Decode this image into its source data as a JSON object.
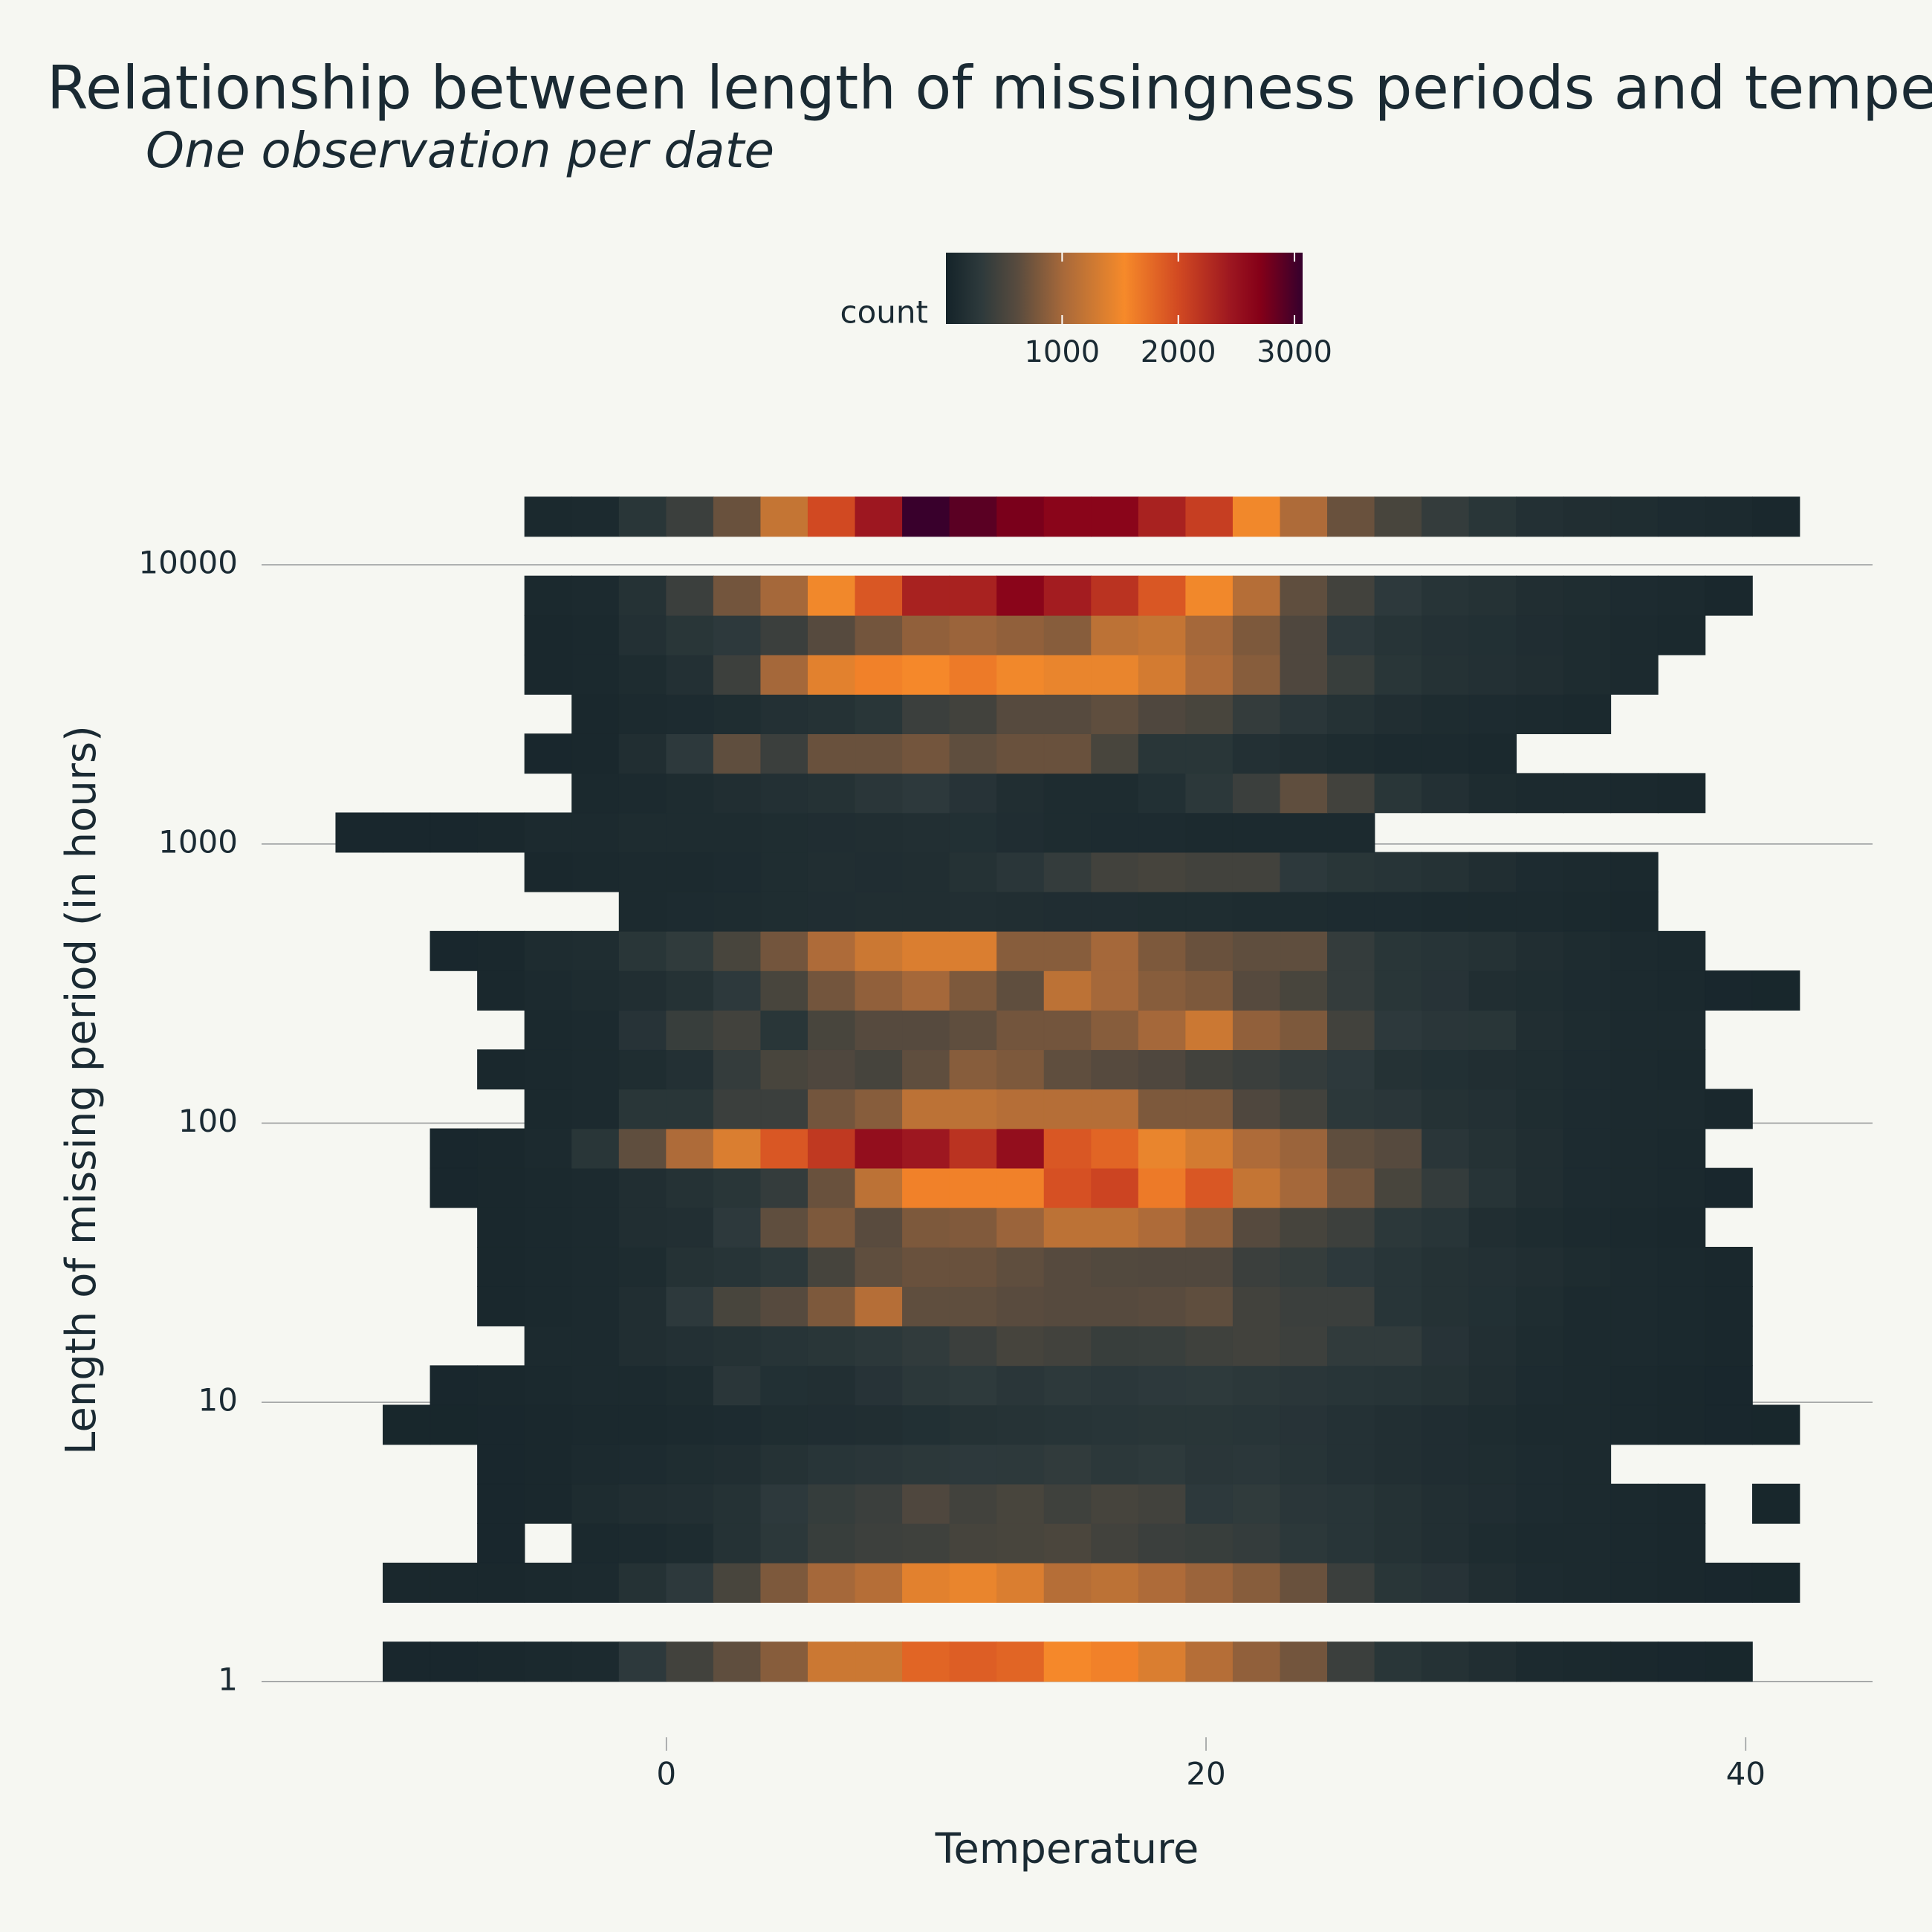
{
  "chart_data": {
    "type": "heatmap2d",
    "title": "Relationship between length of missingness periods and temperature",
    "subtitle": "One observation per date",
    "x_label": "Temperature",
    "y_label": "Length of missing period (in hours)",
    "colorbar_title": "count",
    "xlim": [
      -15,
      44.7
    ],
    "xticks": [
      0,
      20,
      40
    ],
    "ylim": [
      0.7,
      20000
    ],
    "yticks": [
      1,
      10,
      100,
      1000,
      10000
    ],
    "ylog": true,
    "grid": "y",
    "zlim": [
      0,
      3070
    ],
    "zticks": [
      1000,
      2000,
      3000
    ],
    "colorscale": [
      [
        0,
        "#142329"
      ],
      [
        0.1,
        "#2e3a3c"
      ],
      [
        0.2,
        "#584b3e"
      ],
      [
        0.33,
        "#a8693a"
      ],
      [
        0.5,
        "#f68a2a"
      ],
      [
        0.65,
        "#d24a22"
      ],
      [
        0.8,
        "#9c1620"
      ],
      [
        0.88,
        "#850018"
      ],
      [
        1,
        "#35002d"
      ]
    ],
    "xbins": [
      -12.25,
      -10.5,
      -8.75,
      -7,
      -5.25,
      -3.5,
      -1.75,
      0,
      1.75,
      3.5,
      5.25,
      7,
      8.75,
      10.5,
      12.25,
      14,
      15.75,
      17.5,
      19.25,
      21,
      22.75,
      24.5,
      26.25,
      28,
      29.75,
      31.5,
      33.25,
      35,
      36.75,
      38.5,
      40.25,
      42
    ],
    "ybins": [
      1,
      1.385,
      1.918,
      2.657,
      3.679,
      5.095,
      7.057,
      9.772,
      13.53,
      18.75,
      25.96,
      35.95,
      49.79,
      68.96,
      95.5,
      132.3,
      183.2,
      253.7,
      351.4,
      486.7,
      674,
      933.3,
      1293,
      1790,
      2480,
      3434,
      4756,
      6587,
      9121,
      12631,
      17500
    ],
    "z": [
      [
        null,
        60,
        60,
        70,
        80,
        100,
        300,
        450,
        650,
        850,
        1250,
        1250,
        1800,
        1850,
        1800,
        1550,
        1600,
        1350,
        1100,
        900,
        750,
        400,
        250,
        200,
        150,
        100,
        80,
        70,
        60,
        50,
        null
      ],
      [
        null,
        null,
        null,
        null,
        null,
        null,
        null,
        null,
        null,
        null,
        null,
        null,
        null,
        null,
        null,
        null,
        null,
        null,
        null,
        null,
        null,
        null,
        null,
        null,
        null,
        null,
        null,
        null,
        null,
        null,
        null
      ],
      [
        null,
        70,
        70,
        70,
        80,
        100,
        200,
        300,
        500,
        800,
        1000,
        1100,
        1400,
        1450,
        1350,
        1100,
        1150,
        1050,
        950,
        850,
        700,
        400,
        250,
        220,
        150,
        110,
        90,
        80,
        70,
        60,
        50
      ],
      [
        null,
        null,
        null,
        60,
        null,
        80,
        100,
        120,
        200,
        280,
        380,
        420,
        430,
        480,
        500,
        520,
        450,
        400,
        380,
        350,
        280,
        240,
        200,
        160,
        120,
        100,
        90,
        80,
        70,
        null,
        null
      ],
      [
        null,
        null,
        null,
        60,
        70,
        120,
        150,
        160,
        200,
        300,
        360,
        400,
        550,
        450,
        500,
        430,
        480,
        450,
        300,
        320,
        260,
        240,
        200,
        160,
        140,
        110,
        90,
        80,
        70,
        null,
        50
      ],
      [
        null,
        null,
        null,
        60,
        70,
        100,
        110,
        130,
        150,
        200,
        240,
        260,
        280,
        300,
        290,
        330,
        280,
        310,
        260,
        270,
        230,
        190,
        160,
        140,
        130,
        110,
        90,
        null,
        null,
        null,
        null
      ],
      [
        null,
        50,
        50,
        60,
        70,
        80,
        80,
        90,
        110,
        130,
        140,
        150,
        170,
        200,
        210,
        230,
        240,
        250,
        250,
        240,
        220,
        190,
        160,
        140,
        120,
        100,
        90,
        80,
        70,
        60,
        50
      ],
      [
        null,
        null,
        60,
        70,
        80,
        90,
        100,
        120,
        260,
        170,
        160,
        220,
        280,
        310,
        260,
        290,
        270,
        300,
        310,
        280,
        260,
        240,
        230,
        200,
        150,
        110,
        90,
        80,
        70,
        60,
        null
      ],
      [
        null,
        null,
        null,
        null,
        90,
        100,
        150,
        180,
        200,
        230,
        250,
        280,
        330,
        400,
        480,
        450,
        380,
        390,
        430,
        450,
        420,
        330,
        330,
        220,
        160,
        120,
        100,
        90,
        80,
        70,
        null
      ],
      [
        null,
        null,
        null,
        70,
        80,
        100,
        150,
        300,
        500,
        600,
        800,
        1100,
        650,
        650,
        620,
        600,
        600,
        620,
        650,
        450,
        400,
        400,
        240,
        200,
        170,
        130,
        100,
        90,
        80,
        70,
        null
      ],
      [
        null,
        null,
        null,
        70,
        80,
        100,
        120,
        200,
        230,
        280,
        480,
        650,
        700,
        700,
        650,
        600,
        570,
        560,
        560,
        400,
        360,
        300,
        240,
        200,
        180,
        150,
        120,
        100,
        80,
        70,
        null
      ],
      [
        null,
        null,
        null,
        70,
        80,
        90,
        150,
        160,
        300,
        650,
        800,
        620,
        800,
        820,
        950,
        1150,
        1150,
        1050,
        900,
        600,
        480,
        420,
        280,
        240,
        150,
        120,
        100,
        80,
        70,
        null,
        null
      ],
      [
        null,
        null,
        60,
        70,
        80,
        100,
        150,
        200,
        250,
        350,
        700,
        1150,
        1600,
        1600,
        1600,
        1950,
        2050,
        1650,
        1900,
        1200,
        1000,
        750,
        500,
        350,
        230,
        150,
        110,
        90,
        80,
        60,
        null
      ],
      [
        null,
        null,
        60,
        70,
        90,
        250,
        650,
        1050,
        1350,
        1900,
        2150,
        2550,
        2450,
        2200,
        2550,
        1900,
        1800,
        1450,
        1300,
        1050,
        950,
        650,
        600,
        260,
        200,
        150,
        110,
        90,
        80,
        null,
        null
      ],
      [
        null,
        null,
        null,
        null,
        80,
        100,
        250,
        250,
        400,
        400,
        750,
        850,
        1150,
        1150,
        1100,
        1100,
        1100,
        800,
        800,
        550,
        450,
        280,
        260,
        200,
        180,
        130,
        110,
        100,
        90,
        70,
        null
      ],
      [
        null,
        null,
        null,
        70,
        80,
        100,
        130,
        180,
        350,
        500,
        550,
        480,
        650,
        850,
        800,
        650,
        600,
        550,
        450,
        400,
        350,
        300,
        200,
        170,
        150,
        130,
        110,
        90,
        80,
        null,
        null
      ],
      [
        null,
        null,
        null,
        null,
        80,
        90,
        220,
        380,
        450,
        250,
        500,
        600,
        600,
        650,
        750,
        750,
        850,
        1000,
        1250,
        900,
        800,
        450,
        300,
        260,
        250,
        150,
        120,
        100,
        90,
        null,
        null
      ],
      [
        null,
        null,
        null,
        70,
        90,
        120,
        150,
        200,
        300,
        500,
        750,
        900,
        1000,
        800,
        650,
        1150,
        1000,
        850,
        800,
        600,
        500,
        350,
        250,
        220,
        150,
        130,
        110,
        90,
        80,
        60,
        50
      ],
      [
        null,
        null,
        60,
        70,
        120,
        130,
        250,
        320,
        500,
        750,
        1050,
        1250,
        1350,
        1350,
        850,
        850,
        1000,
        800,
        700,
        650,
        650,
        350,
        250,
        230,
        200,
        150,
        120,
        100,
        80,
        null,
        null
      ],
      [
        null,
        null,
        null,
        null,
        null,
        null,
        100,
        110,
        120,
        130,
        140,
        150,
        150,
        160,
        150,
        140,
        140,
        130,
        130,
        120,
        120,
        110,
        110,
        100,
        100,
        90,
        80,
        70,
        null,
        null,
        null
      ],
      [
        null,
        null,
        null,
        null,
        70,
        80,
        90,
        100,
        110,
        130,
        150,
        140,
        150,
        200,
        260,
        350,
        450,
        480,
        450,
        450,
        300,
        250,
        230,
        200,
        150,
        110,
        90,
        80,
        null,
        null,
        null
      ],
      [
        60,
        60,
        60,
        70,
        90,
        100,
        120,
        120,
        120,
        130,
        140,
        150,
        160,
        170,
        140,
        120,
        110,
        110,
        100,
        90,
        90,
        90,
        null,
        null,
        null,
        null,
        null,
        null,
        null,
        null,
        null
      ],
      [
        null,
        null,
        null,
        null,
        null,
        80,
        100,
        120,
        150,
        180,
        200,
        260,
        300,
        220,
        150,
        120,
        120,
        170,
        280,
        400,
        650,
        450,
        250,
        180,
        120,
        100,
        90,
        80,
        70,
        null,
        null
      ],
      [
        null,
        null,
        null,
        null,
        60,
        70,
        150,
        300,
        650,
        400,
        700,
        700,
        750,
        650,
        700,
        700,
        500,
        250,
        250,
        180,
        150,
        120,
        100,
        90,
        80,
        null,
        null,
        null,
        null,
        null,
        null
      ],
      [
        null,
        null,
        null,
        null,
        null,
        70,
        100,
        110,
        130,
        180,
        200,
        250,
        400,
        450,
        600,
        600,
        650,
        550,
        500,
        350,
        260,
        200,
        150,
        120,
        110,
        100,
        80,
        null,
        null,
        null,
        null
      ],
      [
        null,
        null,
        null,
        null,
        70,
        80,
        120,
        180,
        420,
        1000,
        1400,
        1600,
        1550,
        1650,
        1500,
        1450,
        1450,
        1300,
        1050,
        850,
        550,
        380,
        250,
        200,
        180,
        150,
        120,
        100,
        null,
        null,
        null
      ],
      [
        null,
        null,
        null,
        null,
        70,
        80,
        180,
        250,
        300,
        400,
        600,
        750,
        900,
        950,
        900,
        850,
        1150,
        1200,
        1000,
        800,
        550,
        300,
        230,
        190,
        170,
        140,
        120,
        100,
        80,
        null,
        null
      ],
      [
        null,
        null,
        null,
        null,
        80,
        90,
        200,
        400,
        750,
        1000,
        1500,
        1900,
        2350,
        2350,
        2650,
        2400,
        2200,
        1900,
        1500,
        1100,
        650,
        450,
        300,
        230,
        200,
        150,
        130,
        110,
        90,
        70,
        null
      ],
      [
        null,
        null,
        null,
        null,
        null,
        null,
        null,
        null,
        null,
        null,
        null,
        null,
        null,
        null,
        null,
        null,
        null,
        null,
        null,
        null,
        null,
        null,
        null,
        null,
        null,
        null,
        null,
        null,
        null,
        null,
        null
      ],
      [
        null,
        null,
        null,
        null,
        80,
        100,
        250,
        400,
        700,
        1200,
        2000,
        2450,
        3050,
        2900,
        2750,
        2650,
        2650,
        2350,
        2100,
        1500,
        1050,
        700,
        500,
        350,
        250,
        180,
        150,
        130,
        110,
        90,
        70
      ]
    ]
  }
}
